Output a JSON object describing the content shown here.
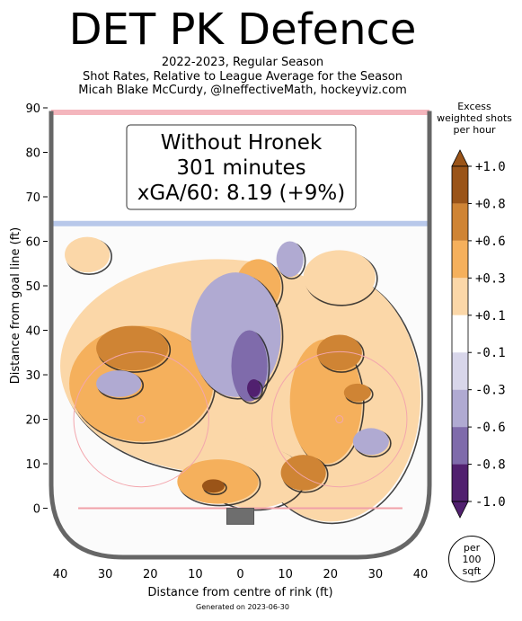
{
  "header": {
    "title": "DET PK Defence",
    "subtitle_lines": [
      "2022-2023, Regular Season",
      "Shot Rates, Relative to League Average for the Season",
      "Micah Blake McCurdy, @IneffectiveMath, hockeyviz.com"
    ]
  },
  "footer": {
    "generated": "Generated on 2023-06-30"
  },
  "chart_data": {
    "type": "heatmap",
    "title": "DET PK Defence",
    "xlabel": "Distance from centre of rink (ft)",
    "ylabel": "Distance from goal line (ft)",
    "x_ticks": [
      "40",
      "30",
      "20",
      "10",
      "0",
      "10",
      "20",
      "30",
      "40"
    ],
    "y_ticks": [
      "0",
      "10",
      "20",
      "30",
      "40",
      "50",
      "60",
      "70",
      "80",
      "90"
    ],
    "xlim": [
      -42,
      42
    ],
    "ylim": [
      -11,
      90
    ],
    "info_box": {
      "line1": "Without Hronek",
      "line2": "301 minutes",
      "line3": "xGA/60: 8.19 (+9%)"
    },
    "colorbar": {
      "title_lines": [
        "Excess",
        "weighted shots",
        "per hour"
      ],
      "labels": [
        "+1.0",
        "+0.8",
        "+0.6",
        "+0.3",
        "+0.1",
        "-0.1",
        "-0.3",
        "-0.6",
        "-0.8",
        "-1.0"
      ],
      "colors": [
        "#9a5418",
        "#cf8434",
        "#f5b05c",
        "#fbd7a8",
        "#ffffff",
        "#d8d6ea",
        "#b0aad2",
        "#7f6bab",
        "#51206f"
      ],
      "unit_badge": [
        "per",
        "100",
        "sqft"
      ]
    },
    "rink": {
      "blue_line_ft": 64,
      "end_line_ft": 89,
      "goal_line_ft": 0,
      "faceoff_circles": [
        {
          "x": -22,
          "y": 20,
          "r": 15
        },
        {
          "x": 22,
          "y": 20,
          "r": 15
        }
      ]
    },
    "regions": [
      {
        "level": 0.3,
        "cx": -5,
        "cy": 32,
        "rx": 35,
        "ry": 24
      },
      {
        "level": 0.3,
        "cx": 20,
        "cy": 25,
        "rx": 20,
        "ry": 28
      },
      {
        "level": 0.3,
        "cx": -34,
        "cy": 57,
        "rx": 5,
        "ry": 4
      },
      {
        "level": 0.3,
        "cx": 3,
        "cy": 7,
        "rx": 11,
        "ry": 7
      },
      {
        "level": 0.3,
        "cx": 22,
        "cy": 52,
        "rx": 8,
        "ry": 6
      },
      {
        "level": 0.6,
        "cx": -22,
        "cy": 28,
        "rx": 16,
        "ry": 13
      },
      {
        "level": 0.6,
        "cx": 19,
        "cy": 24,
        "rx": 8,
        "ry": 14
      },
      {
        "level": 0.6,
        "cx": -5,
        "cy": 6,
        "rx": 9,
        "ry": 5
      },
      {
        "level": 0.6,
        "cx": 4,
        "cy": 50,
        "rx": 5,
        "ry": 6
      },
      {
        "level": 0.8,
        "cx": -24,
        "cy": 36,
        "rx": 8,
        "ry": 5
      },
      {
        "level": 0.8,
        "cx": 22,
        "cy": 35,
        "rx": 5,
        "ry": 4
      },
      {
        "level": 0.8,
        "cx": 14,
        "cy": 8,
        "rx": 5,
        "ry": 4
      },
      {
        "level": 1.0,
        "cx": -6,
        "cy": 5,
        "rx": 2.5,
        "ry": 1.5
      },
      {
        "level": 0.8,
        "cx": 26,
        "cy": 26,
        "rx": 3,
        "ry": 2
      },
      {
        "level": -0.3,
        "cx": -1,
        "cy": 39,
        "rx": 10,
        "ry": 14
      },
      {
        "level": -0.3,
        "cx": 11,
        "cy": 56,
        "rx": 3,
        "ry": 4
      },
      {
        "level": -0.3,
        "cx": -27,
        "cy": 28,
        "rx": 5,
        "ry": 3
      },
      {
        "level": -0.3,
        "cx": 29,
        "cy": 15,
        "rx": 4,
        "ry": 3
      },
      {
        "level": -0.6,
        "cx": 2,
        "cy": 32,
        "rx": 4,
        "ry": 8
      },
      {
        "level": -0.8,
        "cx": 3,
        "cy": 27,
        "rx": 1.5,
        "ry": 2
      }
    ]
  }
}
